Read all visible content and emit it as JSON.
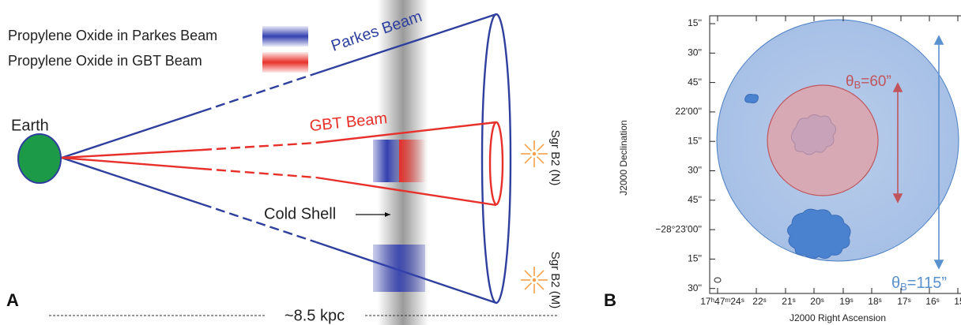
{
  "panel_a": {
    "label": "A",
    "legend": [
      "Propylene Oxide in Parkes Beam",
      "Propylene Oxide in GBT Beam"
    ],
    "parkes_beam": "Parkes Beam",
    "gbt_beam": "GBT Beam",
    "earth": "Earth",
    "cold_shell": "Cold Shell",
    "sources": [
      "Sgr B2 (N)",
      "Sgr B2 (M)"
    ],
    "distance": "~8.5 kpc"
  },
  "panel_b": {
    "label": "B",
    "y_axis_title": "J2000 Declination",
    "x_axis_title": "J2000 Right Ascension",
    "y_ticks": [
      "15''",
      "30''",
      "45''",
      "22'00''",
      "15''",
      "30''",
      "45''",
      "−28°23'00''",
      "15''",
      "30''"
    ],
    "x_ticks": [
      "17ʰ47ᵐ24ˢ",
      "22ˢ",
      "21ˢ",
      "20ˢ",
      "19ˢ",
      "18ˢ",
      "17ˢ",
      "16ˢ",
      "15ˢ"
    ],
    "gbt_beam": {
      "symbol": "θ",
      "sub": "B",
      "text": "=60”"
    },
    "parkes_beam": {
      "symbol": "θ",
      "sub": "B",
      "text": "=115”"
    }
  }
}
